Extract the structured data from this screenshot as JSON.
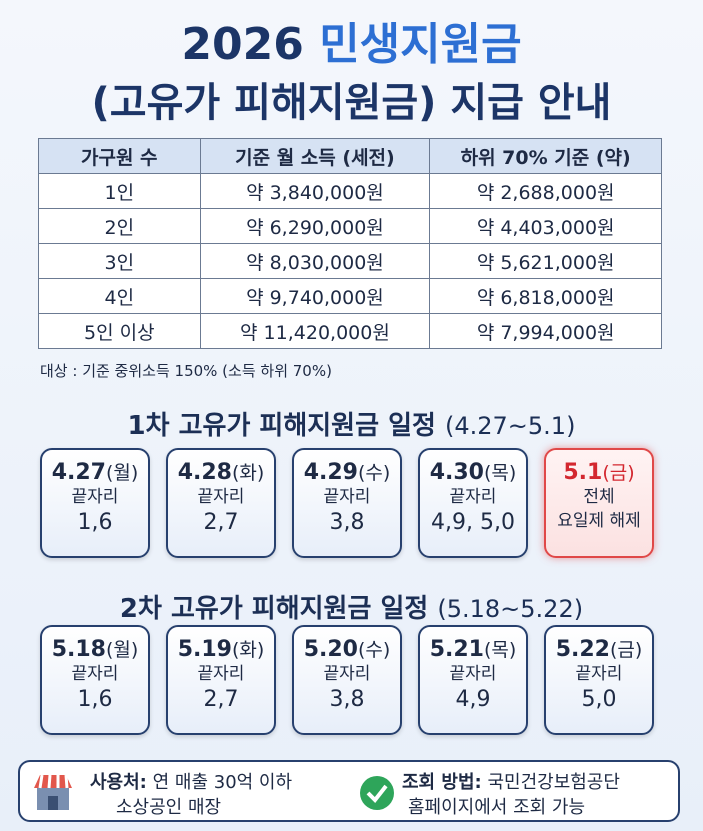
{
  "title": {
    "line1_a": "2026",
    "line1_b": "민생지원금",
    "line2": "(고유가 피해지원금) 지급 안내"
  },
  "table": {
    "headers": [
      "가구원 수",
      "기준 월 소득 (세전)",
      "하위 70% 기준 (약)"
    ],
    "rows": [
      [
        "1인",
        "약 3,840,000원",
        "약 2,688,000원"
      ],
      [
        "2인",
        "약 6,290,000원",
        "약 4,403,000원"
      ],
      [
        "3인",
        "약 8,030,000원",
        "약 5,621,000원"
      ],
      [
        "4인",
        "약 9,740,000원",
        "약 6,818,000원"
      ],
      [
        "5인 이상",
        "약 11,420,000원",
        "약 7,994,000원"
      ]
    ]
  },
  "note": "대상 : 기준 중위소득 150% (소득 하위 70%)",
  "schedules": [
    {
      "title": "1차 고유가 피해지원금 일정",
      "range": "(4.27~5.1)",
      "cards": [
        {
          "date": "4.27",
          "day": "(월)",
          "lines": [
            "끝자리",
            "1,6"
          ]
        },
        {
          "date": "4.28",
          "day": "(화)",
          "lines": [
            "끝자리",
            "2,7"
          ]
        },
        {
          "date": "4.29",
          "day": "(수)",
          "lines": [
            "끝자리",
            "3,8"
          ]
        },
        {
          "date": "4.30",
          "day": "(목)",
          "lines": [
            "끝자리",
            "4,9, 5,0"
          ]
        },
        {
          "date": "5.1",
          "day": "(금)",
          "lines": [
            "전체",
            "요일제 해제"
          ],
          "highlight": true
        }
      ]
    },
    {
      "title": "2차 고유가 피해지원금 일정",
      "range": "(5.18~5.22)",
      "cards": [
        {
          "date": "5.18",
          "day": "(월)",
          "lines": [
            "끝자리",
            "1,6"
          ]
        },
        {
          "date": "5.19",
          "day": "(화)",
          "lines": [
            "끝자리",
            "2,7"
          ]
        },
        {
          "date": "5.20",
          "day": "(수)",
          "lines": [
            "끝자리",
            "3,8"
          ]
        },
        {
          "date": "5.21",
          "day": "(목)",
          "lines": [
            "끝자리",
            "4,9"
          ]
        },
        {
          "date": "5.22",
          "day": "(금)",
          "lines": [
            "끝자리",
            "5,0"
          ]
        }
      ]
    }
  ],
  "footer": [
    {
      "label": "사용처:",
      "lines": [
        "연 매출 30억 이하",
        "소상공인 매장"
      ]
    },
    {
      "label": "조회 방법:",
      "lines": [
        "국민건강보험공단",
        "홈페이지에서 조회 가능"
      ]
    }
  ]
}
